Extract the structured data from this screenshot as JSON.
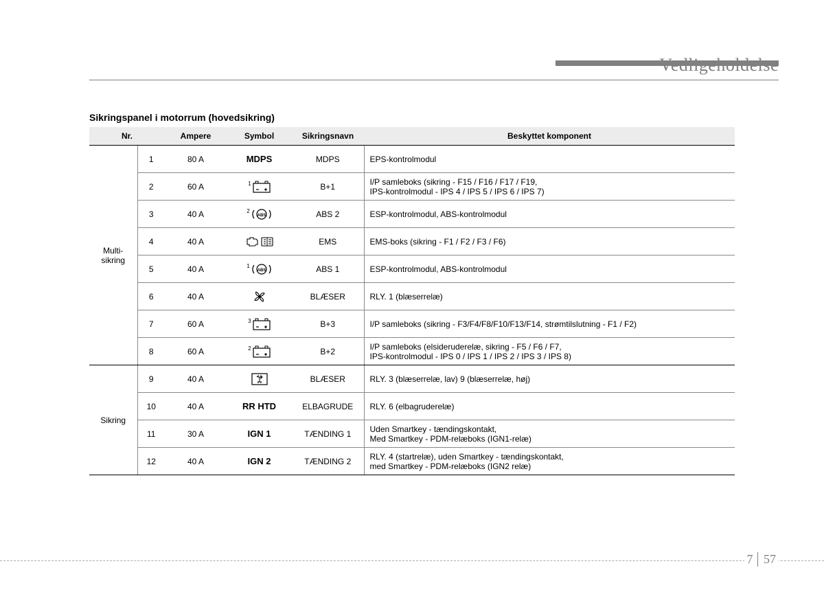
{
  "chapter_title": "Vedligeholdelse",
  "table_title": "Sikringspanel i motorrum (hovedsikring)",
  "headers": {
    "nr": "Nr.",
    "ampere": "Ampere",
    "symbol": "Symbol",
    "sikringsnavn": "Sikringsnavn",
    "komponent": "Beskyttet komponent"
  },
  "groups": [
    {
      "label": "Multi-\nsikring",
      "rows": 8
    },
    {
      "label": "Sikring",
      "rows": 4
    }
  ],
  "rows": [
    {
      "nr": "1",
      "amp": "80 A",
      "sym_type": "text",
      "sym_text": "MDPS",
      "sname": "MDPS",
      "comp": "EPS-kontrolmodul"
    },
    {
      "nr": "2",
      "amp": "60 A",
      "sym_type": "battery",
      "sup": "1",
      "sname": "B+1",
      "comp": "I/P samleboks (sikring - F15 / F16 / F17 / F19,\nIPS-kontrolmodul - IPS 4 / IPS 5 / IPS 6 / IPS 7)"
    },
    {
      "nr": "3",
      "amp": "40 A",
      "sym_type": "abs",
      "sup": "2",
      "sname": "ABS 2",
      "comp": "ESP-kontrolmodul, ABS-kontrolmodul"
    },
    {
      "nr": "4",
      "amp": "40 A",
      "sym_type": "ems",
      "sname": "EMS",
      "comp": "EMS-boks (sikring - F1 / F2 / F3 / F6)"
    },
    {
      "nr": "5",
      "amp": "40 A",
      "sym_type": "abs",
      "sup": "1",
      "sname": "ABS 1",
      "comp": "ESP-kontrolmodul, ABS-kontrolmodul"
    },
    {
      "nr": "6",
      "amp": "40 A",
      "sym_type": "fan",
      "sname": "BLÆSER",
      "comp": "RLY. 1 (blæserrelæ)"
    },
    {
      "nr": "7",
      "amp": "60 A",
      "sym_type": "battery",
      "sup": "3",
      "sname": "B+3",
      "comp": "I/P samleboks (sikring - F3/F4/F8/F10/F13/F14, strømtilslutning - F1 / F2)"
    },
    {
      "nr": "8",
      "amp": "60 A",
      "sym_type": "battery",
      "sup": "2",
      "sname": "B+2",
      "comp": "I/P samleboks (elsideruderelæ, sikring - F5 / F6 / F7,\nIPS-kontrolmodul - IPS 0 / IPS 1 / IPS 2 / IPS 3 / IPS 8)"
    },
    {
      "nr": "9",
      "amp": "40 A",
      "sym_type": "fanbox",
      "sname": "BLÆSER",
      "comp": "RLY. 3 (blæserrelæ, lav) 9 (blæserrelæ, høj)"
    },
    {
      "nr": "10",
      "amp": "40 A",
      "sym_type": "text",
      "sym_text": "RR HTD",
      "sname": "ELBAGRUDE",
      "comp": "RLY. 6 (elbagruderelæ)"
    },
    {
      "nr": "11",
      "amp": "30 A",
      "sym_type": "text",
      "sym_text": "IGN 1",
      "sname": "TÆNDING 1",
      "comp": "Uden Smartkey - tændingskontakt,\nMed Smartkey - PDM-relæboks (IGN1-relæ)"
    },
    {
      "nr": "12",
      "amp": "40 A",
      "sym_type": "text",
      "sym_text": "IGN 2",
      "sname": "TÆNDING 2",
      "comp": "RLY. 4 (startrelæ), uden Smartkey - tændingskontakt,\nmed Smartkey - PDM-relæboks (IGN2 relæ)"
    }
  ],
  "page_chapter": "7",
  "page_number": "57",
  "colors": {
    "header_bg": "#ececec",
    "border": "#888888",
    "chapter_gray": "#808080"
  }
}
